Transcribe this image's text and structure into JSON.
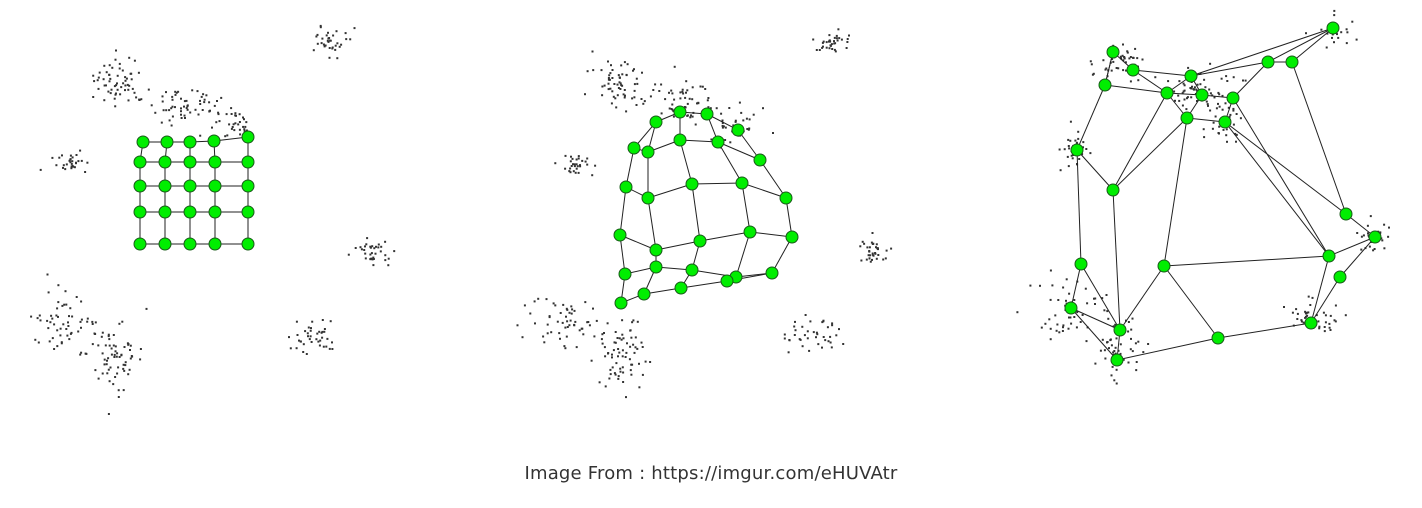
{
  "caption": "Image From : https://imgur.com/eHUVAtr",
  "colors": {
    "node_fill": "#00ee00",
    "node_stroke": "#1a5a1a",
    "edge": "#222222",
    "point": "#333333",
    "background": "#ffffff"
  },
  "panels": [
    {
      "id": "initial",
      "nodes": 25,
      "topology": "grid-5x5"
    },
    {
      "id": "intermediate",
      "nodes": 30,
      "topology": "grid-5x6"
    },
    {
      "id": "converged",
      "nodes": 30,
      "topology": "free"
    }
  ]
}
